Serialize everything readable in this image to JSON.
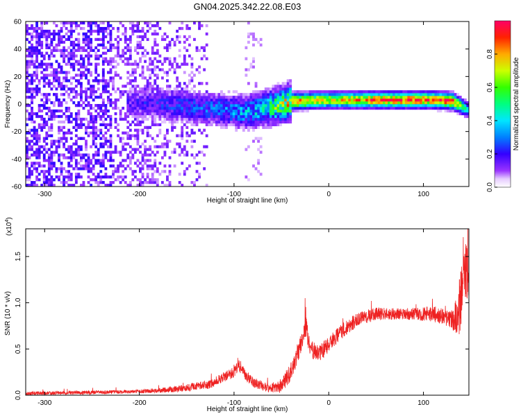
{
  "title": "GN04.2025.342.22.08.E03",
  "chart_data": [
    {
      "type": "heatmap",
      "xlabel": "Height of straight line (km)",
      "ylabel": "Frequency (Hz)",
      "xlim": [
        -320,
        148
      ],
      "ylim": [
        -60,
        60
      ],
      "xticks": [
        -300,
        -200,
        -100,
        0,
        100
      ],
      "yticks": [
        -60,
        -40,
        -20,
        0,
        20,
        40,
        60
      ],
      "colorbar": {
        "label": "Normalized spectral amplitude",
        "range": [
          0,
          1
        ],
        "ticks": [
          "0.0",
          "0.2",
          "0.4",
          "0.6",
          "0.8"
        ],
        "colors": [
          "#ffffff",
          "#c77dff",
          "#7a00ff",
          "#0000ff",
          "#00c8ff",
          "#00ff80",
          "#80ff00",
          "#ffff00",
          "#ff8000",
          "#ff0000",
          "#ff0080"
        ]
      },
      "ridge": {
        "description_points": [
          [
            -210,
            0
          ],
          [
            -150,
            -3
          ],
          [
            -110,
            -5
          ],
          [
            -90,
            -7
          ],
          [
            -60,
            -3
          ],
          [
            -40,
            1
          ],
          [
            0,
            2
          ],
          [
            60,
            2
          ],
          [
            110,
            2
          ],
          [
            130,
            1
          ],
          [
            145,
            -5
          ]
        ],
        "peak_amplitude": [
          [
            -210,
            0.2
          ],
          [
            -150,
            0.3
          ],
          [
            -110,
            0.35
          ],
          [
            -70,
            0.5
          ],
          [
            -40,
            0.95
          ],
          [
            0,
            0.75
          ],
          [
            50,
            0.95
          ],
          [
            110,
            0.95
          ],
          [
            130,
            0.95
          ],
          [
            145,
            0.4
          ]
        ]
      },
      "noise_floor_region": [
        -320,
        -130
      ]
    },
    {
      "type": "line",
      "xlabel": "Height of straight line (km)",
      "ylabel": "SNR (10 * v/v)",
      "exponent_label": "(x10",
      "exponent_sup": "4",
      "exponent_close": ")",
      "xlim": [
        -320,
        148
      ],
      "ylim": [
        0,
        1.8
      ],
      "xticks": [
        -300,
        -200,
        -100,
        0,
        100
      ],
      "yticks": [
        "0.0",
        "0.5",
        "1.0",
        "1.5"
      ],
      "color": "#ff0000",
      "envelope": [
        [
          -320,
          0.02
        ],
        [
          -250,
          0.03
        ],
        [
          -200,
          0.04
        ],
        [
          -170,
          0.06
        ],
        [
          -150,
          0.08
        ],
        [
          -125,
          0.12
        ],
        [
          -110,
          0.2
        ],
        [
          -100,
          0.25
        ],
        [
          -95,
          0.32
        ],
        [
          -88,
          0.22
        ],
        [
          -80,
          0.14
        ],
        [
          -65,
          0.08
        ],
        [
          -50,
          0.1
        ],
        [
          -40,
          0.25
        ],
        [
          -33,
          0.45
        ],
        [
          -28,
          0.6
        ],
        [
          -24,
          0.75
        ],
        [
          -20,
          0.5
        ],
        [
          -10,
          0.45
        ],
        [
          0,
          0.55
        ],
        [
          15,
          0.7
        ],
        [
          30,
          0.82
        ],
        [
          50,
          0.88
        ],
        [
          80,
          0.88
        ],
        [
          110,
          0.88
        ],
        [
          130,
          0.82
        ],
        [
          138,
          0.9
        ],
        [
          142,
          1.25
        ],
        [
          148,
          1.35
        ]
      ],
      "noise": [
        [
          -320,
          0.02
        ],
        [
          -200,
          0.02
        ],
        [
          -120,
          0.05
        ],
        [
          -95,
          0.06
        ],
        [
          -60,
          0.05
        ],
        [
          -35,
          0.12
        ],
        [
          -20,
          0.1
        ],
        [
          20,
          0.08
        ],
        [
          80,
          0.06
        ],
        [
          130,
          0.1
        ],
        [
          140,
          0.35
        ],
        [
          148,
          0.35
        ]
      ],
      "spikes": [
        [
          -25,
          1.05
        ],
        [
          -95,
          0.36
        ],
        [
          -100,
          0.33
        ],
        [
          142,
          1.71
        ],
        [
          145,
          1.6
        ],
        [
          138,
          1.25
        ],
        [
          45,
          1.02
        ]
      ]
    }
  ]
}
